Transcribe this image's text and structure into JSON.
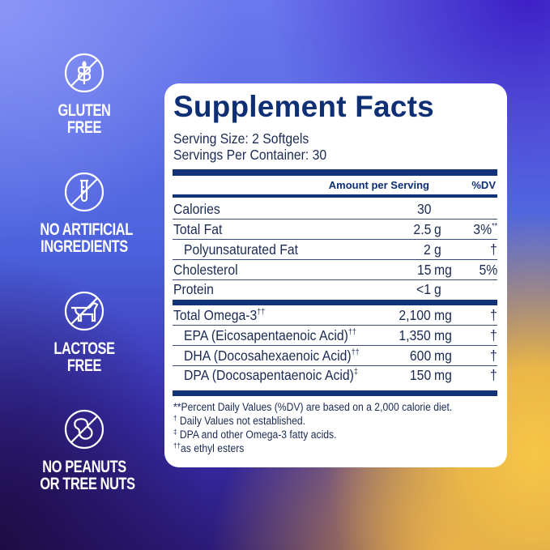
{
  "badges": [
    {
      "icon": "no-gluten-wheat-icon",
      "line1": "GLUTEN",
      "line2": "FREE"
    },
    {
      "icon": "no-test-tube-icon",
      "line1": "NO ARTIFICIAL",
      "line2": "INGREDIENTS"
    },
    {
      "icon": "no-cow-icon",
      "line1": "LACTOSE",
      "line2": "FREE"
    },
    {
      "icon": "no-peanut-icon",
      "line1": "NO PEANUTS",
      "line2": "OR TREE NUTS"
    }
  ],
  "label": {
    "title": "Supplement Facts",
    "serving_size": "Serving Size: 2 Softgels",
    "servings_per_container": "Servings Per Container: 30",
    "header_amount": "Amount per Serving",
    "header_dv": "%DV",
    "rows": [
      {
        "name": "Calories",
        "amount": "30",
        "unit": "",
        "dv": "",
        "mark": "",
        "dv_mark": ""
      },
      {
        "name": "Total Fat",
        "amount": "2.5",
        "unit": "g",
        "dv": "3%",
        "mark": "",
        "dv_mark": "**"
      },
      {
        "name": "Polyunsaturated Fat",
        "amount": "2",
        "unit": "g",
        "dv": "†",
        "mark": "",
        "dv_mark": ""
      },
      {
        "name": "Cholesterol",
        "amount": "15",
        "unit": "mg",
        "dv": "5%",
        "mark": "",
        "dv_mark": ""
      },
      {
        "name": "Protein",
        "amount": "<1",
        "unit": "g",
        "dv": "",
        "mark": "",
        "dv_mark": ""
      },
      {
        "name": "Total Omega-3",
        "amount": "2,100",
        "unit": "mg",
        "dv": "†",
        "mark": "††",
        "dv_mark": ""
      },
      {
        "name": "EPA (Eicosapentaenoic Acid)",
        "amount": "1,350",
        "unit": "mg",
        "dv": "†",
        "mark": "††",
        "dv_mark": ""
      },
      {
        "name": "DHA (Docosahexaenoic Acid)",
        "amount": "600",
        "unit": "mg",
        "dv": "†",
        "mark": "††",
        "dv_mark": ""
      },
      {
        "name": "DPA (Docosapentaenoic Acid)",
        "amount": "150",
        "unit": "mg",
        "dv": "†",
        "mark": "‡",
        "dv_mark": ""
      }
    ],
    "footnotes": [
      {
        "mark": "**",
        "text": "Percent Daily Values (%DV) are based on a 2,000 calorie diet."
      },
      {
        "mark": "†",
        "text": " Daily Values not established."
      },
      {
        "mark": "‡",
        "text": " DPA and other Omega-3 fatty acids."
      },
      {
        "mark": "††",
        "text": "as ethyl esters"
      }
    ]
  },
  "colors": {
    "navy": "#0f2f74",
    "bar": "#123279",
    "badge_text": "#ffffff"
  }
}
